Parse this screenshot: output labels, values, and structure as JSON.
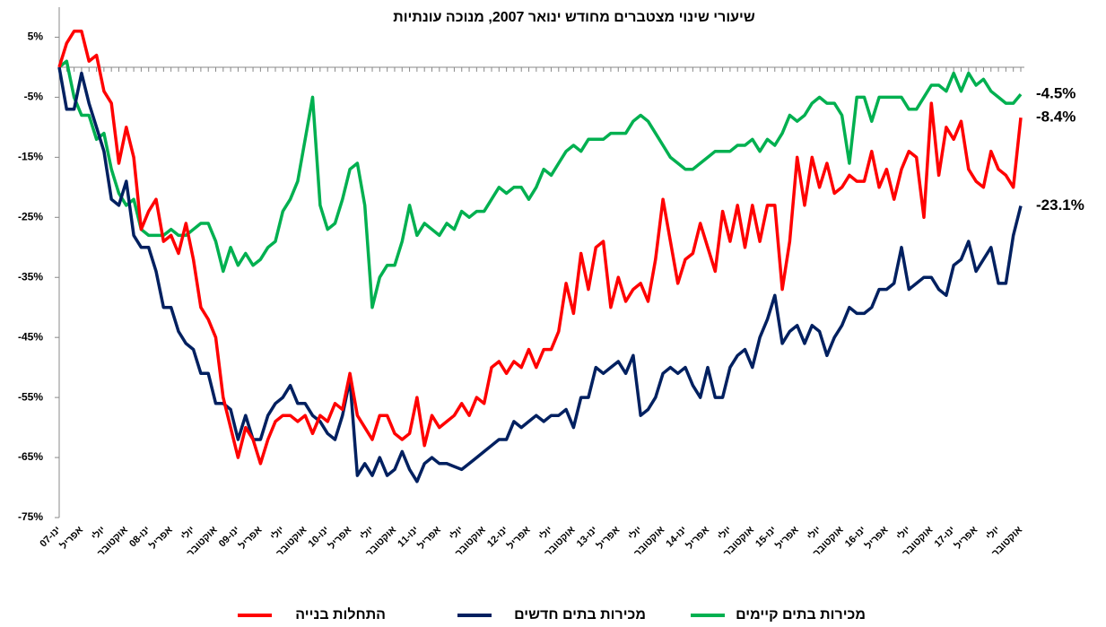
{
  "chart_data": {
    "type": "line",
    "title": "שיעורי שינוי מצטברים מחודש ינואר 2007, מנוכה עונתיות",
    "categories": [
      "ינו-07",
      null,
      null,
      "אפריל",
      null,
      null,
      "יולי",
      null,
      null,
      "אוקטובר",
      null,
      null,
      "ינו-08",
      null,
      null,
      "אפריל",
      null,
      null,
      "יולי",
      null,
      null,
      "אוקטובר",
      null,
      null,
      "ינו-09",
      null,
      null,
      "אפריל",
      null,
      null,
      "יולי",
      null,
      null,
      "אוקטובר",
      null,
      null,
      "ינו-10",
      null,
      null,
      "אפריל",
      null,
      null,
      "יולי",
      null,
      null,
      "אוקטובר",
      null,
      null,
      "ינו-11",
      null,
      null,
      "אפריל",
      null,
      null,
      "יולי",
      null,
      null,
      "אוקטובר",
      null,
      null,
      "ינו-12",
      null,
      null,
      "אפריל",
      null,
      null,
      "יולי",
      null,
      null,
      "אוקטובר",
      null,
      null,
      "ינו-13",
      null,
      null,
      "אפריל",
      null,
      null,
      "יולי",
      null,
      null,
      "אוקטובר",
      null,
      null,
      "ינו-14",
      null,
      null,
      "אפריל",
      null,
      null,
      "יולי",
      null,
      null,
      "אוקטובר",
      null,
      null,
      "ינו-15",
      null,
      null,
      "אפריל",
      null,
      null,
      "יולי",
      null,
      null,
      "אוקטובר",
      null,
      null,
      "ינו-16",
      null,
      null,
      "אפריל",
      null,
      null,
      "יולי",
      null,
      null,
      "אוקטובר",
      null,
      null,
      "ינו-17",
      null,
      null,
      "אפריל",
      null,
      null,
      "יולי",
      null,
      null,
      "אוקטובר"
    ],
    "series": [
      {
        "name": "התחלות בנייה",
        "color": "#ff0000",
        "end_label": "-8.4%",
        "values": [
          0,
          4,
          6,
          6,
          1,
          2,
          -4,
          -6,
          -16,
          -10,
          -15,
          -27,
          -24,
          -22,
          -29,
          -28,
          -31,
          -26,
          -32,
          -40,
          -42,
          -45,
          -55,
          -60,
          -65,
          -60,
          -62,
          -66,
          -62,
          -59,
          -58,
          -58,
          -59,
          -58,
          -61,
          -58,
          -59,
          -56,
          -57,
          -51,
          -58,
          -60,
          -62,
          -58,
          -58,
          -61,
          -62,
          -61,
          -55,
          -63,
          -58,
          -60,
          -59,
          -58,
          -56,
          -58,
          -55,
          -56,
          -50,
          -49,
          -51,
          -49,
          -50,
          -47,
          -50,
          -47,
          -47,
          -44,
          -36,
          -41,
          -31,
          -37,
          -30,
          -29,
          -40,
          -35,
          -39,
          -37,
          -36,
          -39,
          -32,
          -22,
          -29,
          -36,
          -32,
          -31,
          -26,
          -30,
          -34,
          -24,
          -29,
          -23,
          -30,
          -23,
          -29,
          -23,
          -23,
          -37,
          -29,
          -15,
          -23,
          -15,
          -20,
          -16,
          -21,
          -20,
          -18,
          -19,
          -19,
          -14,
          -20,
          -17,
          -22,
          -17,
          -14,
          -15,
          -25,
          -6,
          -18,
          -10,
          -12,
          -9,
          -17,
          -19,
          -20,
          -14,
          -17,
          -18,
          -20,
          -8.4
        ]
      },
      {
        "name": "מכירות בתים חדשים",
        "color": "#002060",
        "end_label": "-23.1%",
        "values": [
          0,
          -7,
          -7,
          -1,
          -6,
          -10,
          -14,
          -22,
          -23,
          -19,
          -28,
          -30,
          -30,
          -34,
          -40,
          -40,
          -44,
          -46,
          -47,
          -51,
          -51,
          -56,
          -56,
          -57,
          -62,
          -58,
          -62,
          -62,
          -58,
          -56,
          -55,
          -53,
          -56,
          -56,
          -58,
          -59,
          -61,
          -62,
          -58,
          -52,
          -68,
          -66,
          -68,
          -65,
          -68,
          -67,
          -64,
          -67,
          -69,
          -66,
          -65,
          -66,
          -66,
          -66.5,
          -67,
          -66,
          -65,
          -64,
          -63,
          -62,
          -62,
          -59,
          -60,
          -59,
          -58,
          -59,
          -58,
          -58,
          -57,
          -60,
          -55,
          -55,
          -50,
          -51,
          -50,
          -49,
          -51,
          -48,
          -58,
          -57,
          -55,
          -51,
          -50,
          -51,
          -50,
          -53,
          -55,
          -50,
          -55,
          -55,
          -50,
          -48,
          -47,
          -50,
          -45,
          -42,
          -38,
          -46,
          -44,
          -43,
          -46,
          -43,
          -44,
          -48,
          -45,
          -43,
          -40,
          -41,
          -41,
          -40,
          -37,
          -37,
          -36,
          -30,
          -37,
          -36,
          -35,
          -35,
          -37,
          -38,
          -33,
          -32,
          -29,
          -34,
          -32,
          -30,
          -36,
          -36,
          -28,
          -23.1
        ]
      },
      {
        "name": "מכירות בתים קיימים",
        "color": "#00b050",
        "end_label": "-4.5%",
        "values": [
          0,
          1,
          -5,
          -8,
          -8,
          -12,
          -11,
          -17,
          -21,
          -23,
          -22,
          -27,
          -28,
          -28,
          -28,
          -27,
          -28,
          -28,
          -27,
          -26,
          -26,
          -29,
          -34,
          -30,
          -33,
          -31,
          -33,
          -32,
          -30,
          -29,
          -24,
          -22,
          -19,
          -12,
          -5,
          -23,
          -27,
          -26,
          -22,
          -17,
          -16,
          -23,
          -40,
          -35,
          -33,
          -33,
          -29,
          -23,
          -28,
          -26,
          -27,
          -28,
          -26,
          -27,
          -24,
          -25,
          -24,
          -24,
          -22,
          -20,
          -21,
          -20,
          -20,
          -22,
          -20,
          -17,
          -18,
          -16,
          -14,
          -13,
          -14,
          -12,
          -12,
          -12,
          -11,
          -11,
          -11,
          -9,
          -8,
          -9,
          -11,
          -13,
          -15,
          -16,
          -17,
          -17,
          -16,
          -15,
          -14,
          -14,
          -14,
          -13,
          -13,
          -12,
          -14,
          -12,
          -13,
          -11,
          -8,
          -9,
          -8,
          -6,
          -5,
          -6,
          -6,
          -8,
          -16,
          -5,
          -5,
          -9,
          -5,
          -5,
          -5,
          -5,
          -7,
          -7,
          -5,
          -3,
          -3,
          -4,
          -1,
          -4,
          -1,
          -3,
          -2,
          -4,
          -5,
          -6,
          -6,
          -4.5
        ]
      }
    ],
    "ylim": [
      -75,
      10
    ],
    "yticks": [
      {
        "value": 5,
        "label": "5%"
      },
      {
        "value": -5,
        "label": "-5%"
      },
      {
        "value": -15,
        "label": "-15%"
      },
      {
        "value": -25,
        "label": "-25%"
      },
      {
        "value": -35,
        "label": "-35%"
      },
      {
        "value": -45,
        "label": "-45%"
      },
      {
        "value": -55,
        "label": "-55%"
      },
      {
        "value": -65,
        "label": "-65%"
      },
      {
        "value": -75,
        "label": "-75%"
      }
    ],
    "grid": false
  }
}
